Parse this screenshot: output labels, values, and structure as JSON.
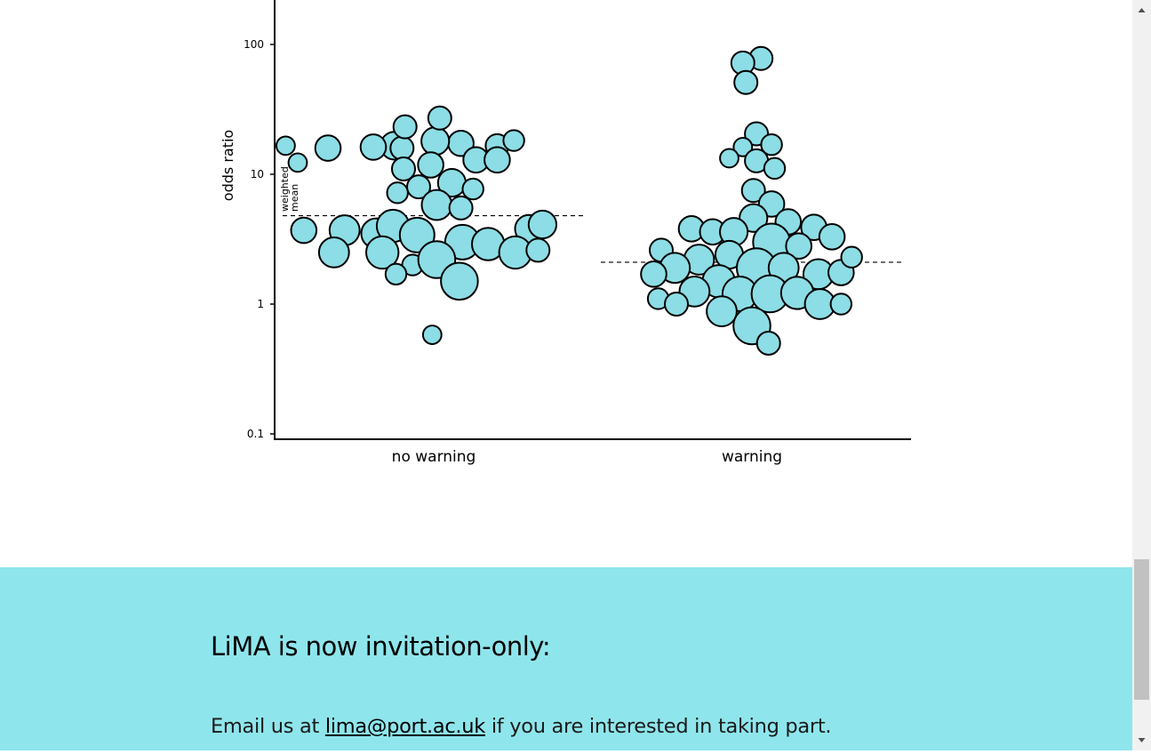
{
  "chart_data": {
    "type": "scatter",
    "subtype": "beeswarm",
    "categories": [
      "no warning",
      "warning"
    ],
    "ylabel": "odds ratio",
    "yscale": "log",
    "ylim": [
      0.1,
      250
    ],
    "yticks": [
      {
        "value": 0.1,
        "label": "0.1"
      },
      {
        "value": 1,
        "label": "1"
      },
      {
        "value": 10,
        "label": "10"
      },
      {
        "value": 100,
        "label": "100"
      }
    ],
    "weighted_mean_label": [
      "weighted",
      "mean"
    ],
    "weighted_means": [
      4.8,
      2.1
    ],
    "point_color": "#8cdde5",
    "series": [
      {
        "category": "no warning",
        "points": [
          {
            "x": -0.98,
            "y": 16.6,
            "size": 8
          },
          {
            "x": -0.26,
            "y": 16.6,
            "size": 12
          },
          {
            "x": 0.42,
            "y": 16.6,
            "size": 10
          },
          {
            "x": -0.21,
            "y": 15.9,
            "size": 10
          },
          {
            "x": -0.7,
            "y": 15.9,
            "size": 11
          },
          {
            "x": -0.4,
            "y": 16.2,
            "size": 11
          },
          {
            "x": 0.53,
            "y": 18.2,
            "size": 9
          },
          {
            "x": 0.18,
            "y": 17.3,
            "size": 11
          },
          {
            "x": 0.01,
            "y": 18.0,
            "size": 12
          },
          {
            "x": -0.9,
            "y": 12.3,
            "size": 8
          },
          {
            "x": 0.28,
            "y": 12.9,
            "size": 11
          },
          {
            "x": 0.42,
            "y": 12.9,
            "size": 11
          },
          {
            "x": -0.19,
            "y": 23.2,
            "size": 10
          },
          {
            "x": 0.04,
            "y": 27.1,
            "size": 10
          },
          {
            "x": -0.2,
            "y": 11.0,
            "size": 10
          },
          {
            "x": -0.02,
            "y": 11.8,
            "size": 11
          },
          {
            "x": -0.24,
            "y": 7.2,
            "size": 9
          },
          {
            "x": -0.1,
            "y": 8.0,
            "size": 10
          },
          {
            "x": 0.12,
            "y": 8.6,
            "size": 12
          },
          {
            "x": 0.26,
            "y": 7.7,
            "size": 9
          },
          {
            "x": 0.02,
            "y": 5.8,
            "size": 13
          },
          {
            "x": 0.18,
            "y": 5.5,
            "size": 10
          },
          {
            "x": -0.86,
            "y": 3.7,
            "size": 11
          },
          {
            "x": -0.59,
            "y": 3.7,
            "size": 13
          },
          {
            "x": -0.38,
            "y": 3.5,
            "size": 13
          },
          {
            "x": -0.27,
            "y": 4.0,
            "size": 14
          },
          {
            "x": -0.11,
            "y": 3.4,
            "size": 15
          },
          {
            "x": 0.19,
            "y": 3.0,
            "size": 15
          },
          {
            "x": 0.36,
            "y": 2.9,
            "size": 14
          },
          {
            "x": 0.63,
            "y": 3.8,
            "size": 12
          },
          {
            "x": 0.72,
            "y": 4.1,
            "size": 12
          },
          {
            "x": -0.66,
            "y": 2.5,
            "size": 13
          },
          {
            "x": -0.34,
            "y": 2.5,
            "size": 14
          },
          {
            "x": 0.54,
            "y": 2.5,
            "size": 14
          },
          {
            "x": 0.69,
            "y": 2.6,
            "size": 10
          },
          {
            "x": -0.14,
            "y": 2.0,
            "size": 9
          },
          {
            "x": 0.02,
            "y": 2.2,
            "size": 16
          },
          {
            "x": -0.25,
            "y": 1.7,
            "size": 9
          },
          {
            "x": 0.17,
            "y": 1.5,
            "size": 16
          },
          {
            "x": -0.01,
            "y": 0.58,
            "size": 8
          }
        ]
      },
      {
        "category": "warning",
        "points": [
          {
            "x": 0.06,
            "y": 78,
            "size": 10
          },
          {
            "x": -0.06,
            "y": 72,
            "size": 10
          },
          {
            "x": -0.04,
            "y": 51,
            "size": 10
          },
          {
            "x": 0.03,
            "y": 20.5,
            "size": 10
          },
          {
            "x": -0.06,
            "y": 16.2,
            "size": 8
          },
          {
            "x": 0.13,
            "y": 16.9,
            "size": 9
          },
          {
            "x": -0.15,
            "y": 13.3,
            "size": 8
          },
          {
            "x": 0.03,
            "y": 12.7,
            "size": 10
          },
          {
            "x": 0.15,
            "y": 11.1,
            "size": 9
          },
          {
            "x": 0.01,
            "y": 7.5,
            "size": 10
          },
          {
            "x": 0.13,
            "y": 5.9,
            "size": 11
          },
          {
            "x": 0.01,
            "y": 4.6,
            "size": 12
          },
          {
            "x": 0.24,
            "y": 4.3,
            "size": 11
          },
          {
            "x": 0.41,
            "y": 3.9,
            "size": 11
          },
          {
            "x": 0.53,
            "y": 3.3,
            "size": 11
          },
          {
            "x": -0.4,
            "y": 3.8,
            "size": 11
          },
          {
            "x": -0.26,
            "y": 3.6,
            "size": 11
          },
          {
            "x": -0.12,
            "y": 3.6,
            "size": 12
          },
          {
            "x": 0.13,
            "y": 3.0,
            "size": 16
          },
          {
            "x": 0.31,
            "y": 2.8,
            "size": 11
          },
          {
            "x": -0.6,
            "y": 2.6,
            "size": 10
          },
          {
            "x": -0.15,
            "y": 2.4,
            "size": 12
          },
          {
            "x": -0.35,
            "y": 2.2,
            "size": 13
          },
          {
            "x": -0.51,
            "y": 1.9,
            "size": 13
          },
          {
            "x": -0.65,
            "y": 1.7,
            "size": 11
          },
          {
            "x": 0.03,
            "y": 1.9,
            "size": 17
          },
          {
            "x": 0.21,
            "y": 1.9,
            "size": 13
          },
          {
            "x": 0.44,
            "y": 1.7,
            "size": 13
          },
          {
            "x": 0.59,
            "y": 1.75,
            "size": 11
          },
          {
            "x": 0.66,
            "y": 2.3,
            "size": 9
          },
          {
            "x": -0.22,
            "y": 1.5,
            "size": 14
          },
          {
            "x": -0.38,
            "y": 1.25,
            "size": 13
          },
          {
            "x": -0.08,
            "y": 1.2,
            "size": 15
          },
          {
            "x": 0.12,
            "y": 1.2,
            "size": 16
          },
          {
            "x": 0.3,
            "y": 1.22,
            "size": 14
          },
          {
            "x": 0.45,
            "y": 1.0,
            "size": 13
          },
          {
            "x": 0.59,
            "y": 1.0,
            "size": 9
          },
          {
            "x": -0.62,
            "y": 1.1,
            "size": 9
          },
          {
            "x": -0.5,
            "y": 1.0,
            "size": 10
          },
          {
            "x": -0.2,
            "y": 0.88,
            "size": 13
          },
          {
            "x": 0.0,
            "y": 0.68,
            "size": 16
          },
          {
            "x": 0.11,
            "y": 0.5,
            "size": 10
          }
        ]
      }
    ]
  },
  "banner": {
    "heading": "LiMA is now invitation-only:",
    "text_before": "Email us at ",
    "email": "lima@port.ac.uk",
    "text_after": " if you are interested in taking part.",
    "background": "#8ee6ec"
  },
  "scrollbar": {
    "up_icon": "scroll-up-arrow-icon",
    "down_icon": "scroll-down-arrow-icon"
  }
}
